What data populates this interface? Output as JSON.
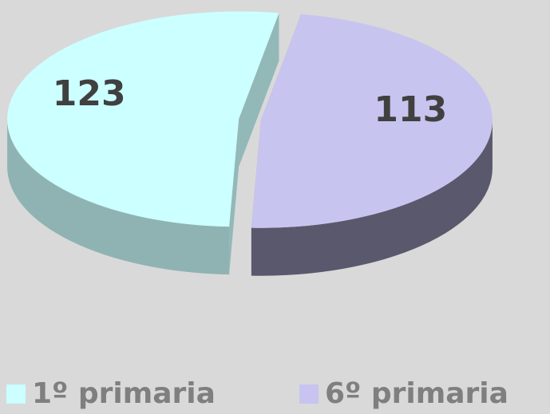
{
  "chart_data": {
    "type": "pie",
    "categories": [
      "1º primaria",
      "6º primaria"
    ],
    "values": [
      123,
      113
    ],
    "colors": [
      "#ccffff",
      "#c8c4f0"
    ],
    "legend": "bottom"
  }
}
